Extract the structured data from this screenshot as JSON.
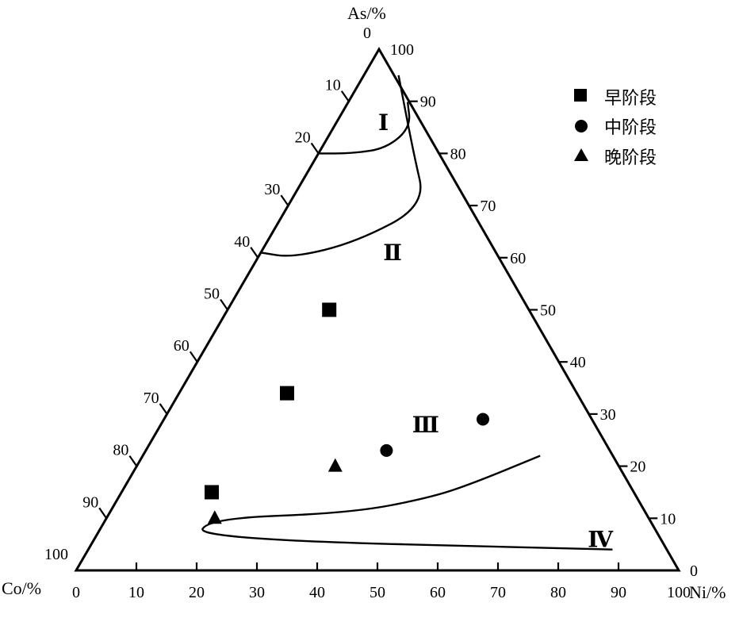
{
  "chart_data": {
    "type": "ternary-scatter",
    "axes": {
      "top": {
        "label": "As/%",
        "ticks": [
          0,
          10,
          20,
          30,
          40,
          50,
          60,
          70,
          80,
          90,
          100
        ]
      },
      "left": {
        "label": "Co/%",
        "ticks": [
          0,
          10,
          20,
          30,
          40,
          50,
          60,
          70,
          80,
          90,
          100
        ]
      },
      "right": {
        "label": "Ni/%",
        "ticks": [
          0,
          10,
          20,
          30,
          40,
          50,
          60,
          70,
          80,
          90,
          100
        ]
      }
    },
    "regions": [
      {
        "label": "Ⅰ",
        "as": 86,
        "ni": 8
      },
      {
        "label": "Ⅱ",
        "as": 61,
        "ni": 22
      },
      {
        "label": "Ⅲ",
        "as": 28,
        "ni": 44
      },
      {
        "label": "Ⅳ",
        "as": 6,
        "ni": 84
      }
    ],
    "boundaries": [
      [
        [
          80,
          0
        ],
        [
          80,
          6
        ],
        [
          81,
          11
        ],
        [
          85,
          13
        ],
        [
          90,
          10
        ]
      ],
      [
        [
          61,
          0
        ],
        [
          60,
          6
        ],
        [
          63,
          15
        ],
        [
          70,
          23
        ],
        [
          80,
          16
        ],
        [
          95,
          6
        ]
      ],
      [
        [
          4,
          87
        ],
        [
          6,
          17
        ],
        [
          10,
          17
        ],
        [
          11,
          40
        ],
        [
          14,
          52
        ],
        [
          17,
          58
        ],
        [
          22,
          66
        ]
      ]
    ],
    "series": [
      {
        "name": "早阶段",
        "marker": "square",
        "points": [
          {
            "as": 50,
            "ni": 17
          },
          {
            "as": 34,
            "ni": 18
          },
          {
            "as": 15,
            "ni": 15
          }
        ]
      },
      {
        "name": "中阶段",
        "marker": "circle",
        "points": [
          {
            "as": 29,
            "ni": 53
          },
          {
            "as": 23,
            "ni": 40
          }
        ]
      },
      {
        "name": "晚阶段",
        "marker": "triangle",
        "points": [
          {
            "as": 20,
            "ni": 33
          },
          {
            "as": 10,
            "ni": 18
          }
        ]
      }
    ],
    "legend": {
      "position": "top-right"
    }
  }
}
